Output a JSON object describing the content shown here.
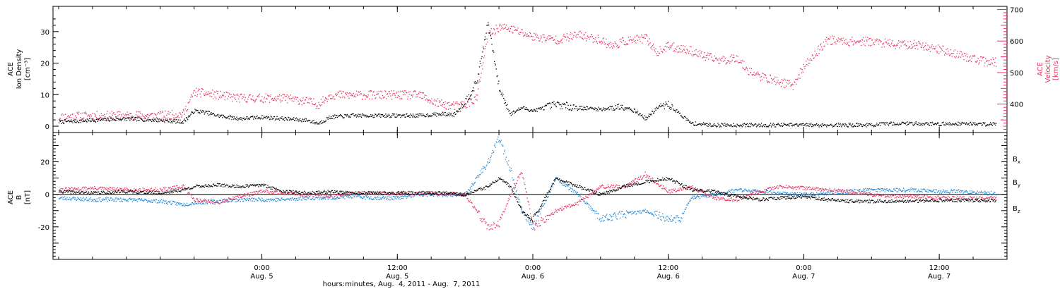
{
  "chart_data": [
    {
      "type": "scatter",
      "panel": "top",
      "ylabel_left": [
        "ACE",
        "Ion Density",
        "[cm⁻³]"
      ],
      "ylabel_right": [
        "ACE",
        "Velocity",
        "[km/s]"
      ],
      "ylim_left": [
        -2,
        38
      ],
      "ylim_right": [
        310,
        710
      ],
      "yticks_left": [
        0,
        10,
        20,
        30
      ],
      "yticks_right": [
        400,
        500,
        600,
        700
      ],
      "colors": {
        "density": "#000000",
        "velocity": "#e8305e"
      },
      "series": [
        {
          "name": "",
          "axis": "left",
          "x": [
            -18,
            -15,
            -12,
            -9,
            -7,
            -6,
            -5,
            -4,
            -3,
            -2,
            0,
            2,
            4,
            5,
            6,
            8,
            10,
            12,
            14,
            16,
            17,
            18,
            19,
            20,
            21,
            22,
            23,
            24,
            26,
            28,
            30,
            32,
            33,
            34,
            35,
            36,
            37,
            38,
            40,
            42,
            44,
            46,
            48,
            50,
            52,
            54,
            56,
            58,
            60,
            62,
            64,
            65
          ],
          "y": [
            1.5,
            2,
            2.5,
            2,
            1.5,
            5,
            4.5,
            3.5,
            3,
            2.5,
            3,
            2.5,
            2,
            1,
            3,
            3.5,
            3.5,
            3.5,
            3.5,
            4,
            3.8,
            8,
            14,
            33,
            12,
            4,
            6,
            5,
            7,
            6,
            5.5,
            6.5,
            5,
            2.5,
            6,
            7,
            4,
            1,
            0.5,
            0.5,
            0.5,
            0.5,
            0.5,
            0.5,
            0.5,
            0.5,
            1,
            1,
            0.8,
            1,
            0.8,
            0.8
          ]
        },
        {
          "name": "",
          "axis": "right",
          "x": [
            -18,
            -15,
            -12,
            -9,
            -7,
            -6,
            -5,
            -4,
            -3,
            -2,
            0,
            2,
            4,
            5,
            6,
            8,
            10,
            12,
            14,
            15,
            16,
            17,
            18,
            19,
            20,
            21,
            22,
            24,
            26,
            28,
            30,
            31,
            32,
            34,
            35,
            36,
            38,
            39,
            40,
            41,
            42,
            43,
            44,
            45,
            46,
            47,
            48,
            49,
            50,
            52,
            54,
            56,
            58,
            60,
            62,
            64,
            65
          ],
          "y": [
            360,
            365,
            365,
            365,
            370,
            440,
            435,
            430,
            425,
            420,
            420,
            420,
            410,
            400,
            430,
            430,
            430,
            430,
            430,
            410,
            400,
            395,
            400,
            420,
            620,
            645,
            640,
            615,
            605,
            620,
            605,
            585,
            600,
            610,
            565,
            585,
            570,
            555,
            545,
            540,
            550,
            510,
            490,
            480,
            470,
            460,
            520,
            560,
            605,
            600,
            600,
            590,
            590,
            575,
            555,
            535,
            535
          ]
        }
      ]
    },
    {
      "type": "scatter",
      "panel": "bottom",
      "ylabel_left": [
        "ACE",
        "B",
        "[nT]"
      ],
      "ylim": [
        -40,
        38
      ],
      "yticks": [
        -20,
        0,
        20
      ],
      "legend": [
        {
          "label": "B",
          "sub": "x",
          "color": "#000000"
        },
        {
          "label": "B",
          "sub": "y",
          "color": "#1a86d8"
        },
        {
          "label": "B",
          "sub": "z",
          "color": "#e8305e"
        }
      ],
      "colors": {
        "Bx": "#000000",
        "By": "#1a86d8",
        "Bz": "#e8305e"
      },
      "series": [
        {
          "name": "Bx",
          "x": [
            -18,
            -15,
            -12,
            -9,
            -7,
            -6,
            -4,
            -2,
            0,
            2,
            4,
            6,
            8,
            10,
            12,
            14,
            16,
            18,
            20,
            21,
            22,
            23,
            24,
            26,
            28,
            30,
            32,
            34,
            36,
            38,
            40,
            42,
            44,
            46,
            48,
            50,
            52,
            54,
            56,
            58,
            60,
            62,
            64,
            65
          ],
          "y": [
            2,
            1,
            2,
            1,
            3,
            5,
            6,
            5,
            6,
            2,
            1,
            2,
            1,
            1,
            1,
            1,
            1,
            0,
            5,
            10,
            5,
            -10,
            -15,
            10,
            5,
            0,
            5,
            8,
            10,
            3,
            2,
            -1,
            -3,
            -2,
            -1,
            -3,
            -4,
            -4,
            -4,
            -4,
            -3.5,
            -3.5,
            -3.5,
            -3.5
          ]
        },
        {
          "name": "By",
          "x": [
            -18,
            -15,
            -12,
            -9,
            -7,
            -6,
            -4,
            -2,
            0,
            2,
            4,
            6,
            8,
            10,
            12,
            14,
            16,
            18,
            19,
            20,
            21,
            22,
            23,
            24,
            26,
            28,
            30,
            32,
            34,
            36,
            37,
            38,
            40,
            42,
            44,
            46,
            48,
            50,
            52,
            54,
            56,
            58,
            60,
            62,
            64,
            65
          ],
          "y": [
            -2,
            -3,
            -3,
            -4,
            -6,
            -5,
            -4,
            -3,
            -3,
            -3,
            -2,
            -2,
            -1,
            -2,
            -2,
            0,
            0,
            0,
            10,
            20,
            35,
            15,
            -10,
            -20,
            10,
            0,
            -15,
            -12,
            -10,
            -15,
            -15,
            -2,
            0,
            3,
            2,
            1,
            0,
            1,
            2,
            3,
            3,
            3,
            2,
            2,
            1,
            1
          ]
        },
        {
          "name": "Bz",
          "x": [
            -18,
            -15,
            -12,
            -9,
            -7,
            -6,
            -4,
            -2,
            0,
            2,
            4,
            6,
            8,
            10,
            12,
            14,
            16,
            18,
            19,
            20,
            21,
            22,
            23,
            24,
            26,
            28,
            30,
            32,
            34,
            36,
            38,
            40,
            42,
            44,
            46,
            48,
            50,
            52,
            54,
            56,
            58,
            60,
            62,
            64,
            65
          ],
          "y": [
            3,
            4,
            3,
            3,
            5,
            -3,
            -5,
            -1,
            2,
            1,
            0,
            -1,
            1,
            1,
            1,
            1,
            1,
            0,
            -10,
            -20,
            -18,
            0,
            15,
            -20,
            -10,
            -5,
            5,
            5,
            12,
            2,
            5,
            -2,
            -3,
            2,
            5,
            4,
            3,
            2,
            0,
            -1,
            -1,
            -2,
            -2,
            -2,
            -2
          ]
        }
      ]
    }
  ],
  "x_axis": {
    "xlim": [
      -18.5,
      66
    ],
    "ticks": [
      {
        "x": 0,
        "time": "0:00",
        "date": "Aug. 5"
      },
      {
        "x": 12,
        "time": "12:00",
        "date": "Aug. 5"
      },
      {
        "x": 24,
        "time": "0:00",
        "date": "Aug. 6"
      },
      {
        "x": 36,
        "time": "12:00",
        "date": "Aug. 6"
      },
      {
        "x": 48,
        "time": "0:00",
        "date": "Aug. 7"
      },
      {
        "x": 60,
        "time": "12:00",
        "date": "Aug. 7"
      }
    ],
    "xlabel": "hours:minutes, Aug.  4, 2011 - Aug.  7, 2011"
  }
}
